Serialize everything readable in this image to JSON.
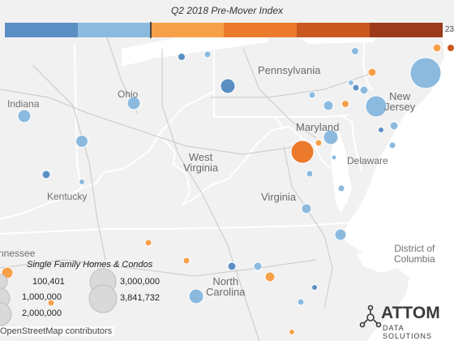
{
  "legend": {
    "title": "Q2 2018 Pre-Mover Index",
    "scale_max": "23",
    "color_steps": [
      "#5b8fc4",
      "#8cbadf",
      "#f7a04a",
      "#ec7a2c",
      "#c9581f",
      "#9c3a1c"
    ]
  },
  "map_labels": {
    "pennsylvania": "Pennsylvania",
    "new_jersey": "New\nJersey",
    "indiana": "Indiana",
    "ohio": "Ohio",
    "maryland": "Maryland",
    "west_virginia": "West\nVirginia",
    "delaware": "Delaware",
    "kentucky": "Kentucky",
    "virginia": "Virginia",
    "district_of_columbia": "District of\nColumbia",
    "tennessee": "nnessee",
    "north_carolina": "North\nCarolina"
  },
  "size_legend": {
    "title": "Single Family Homes & Condos",
    "items": [
      "100,401",
      "1,000,000",
      "2,000,000",
      "3,000,000",
      "3,841,732"
    ]
  },
  "attribution": "OpenStreetMap contributors",
  "brand": {
    "name": "ATTOM",
    "subtitle": "DATA SOLUTIONS"
  },
  "map_data": {
    "type": "proportional-symbol map",
    "region": "Mid-Atlantic / Ohio Valley, United States",
    "color_encoding": "Pre-Mover Index (blue = low, orange/red = high)",
    "size_encoding": "Single Family Homes & Condos"
  }
}
